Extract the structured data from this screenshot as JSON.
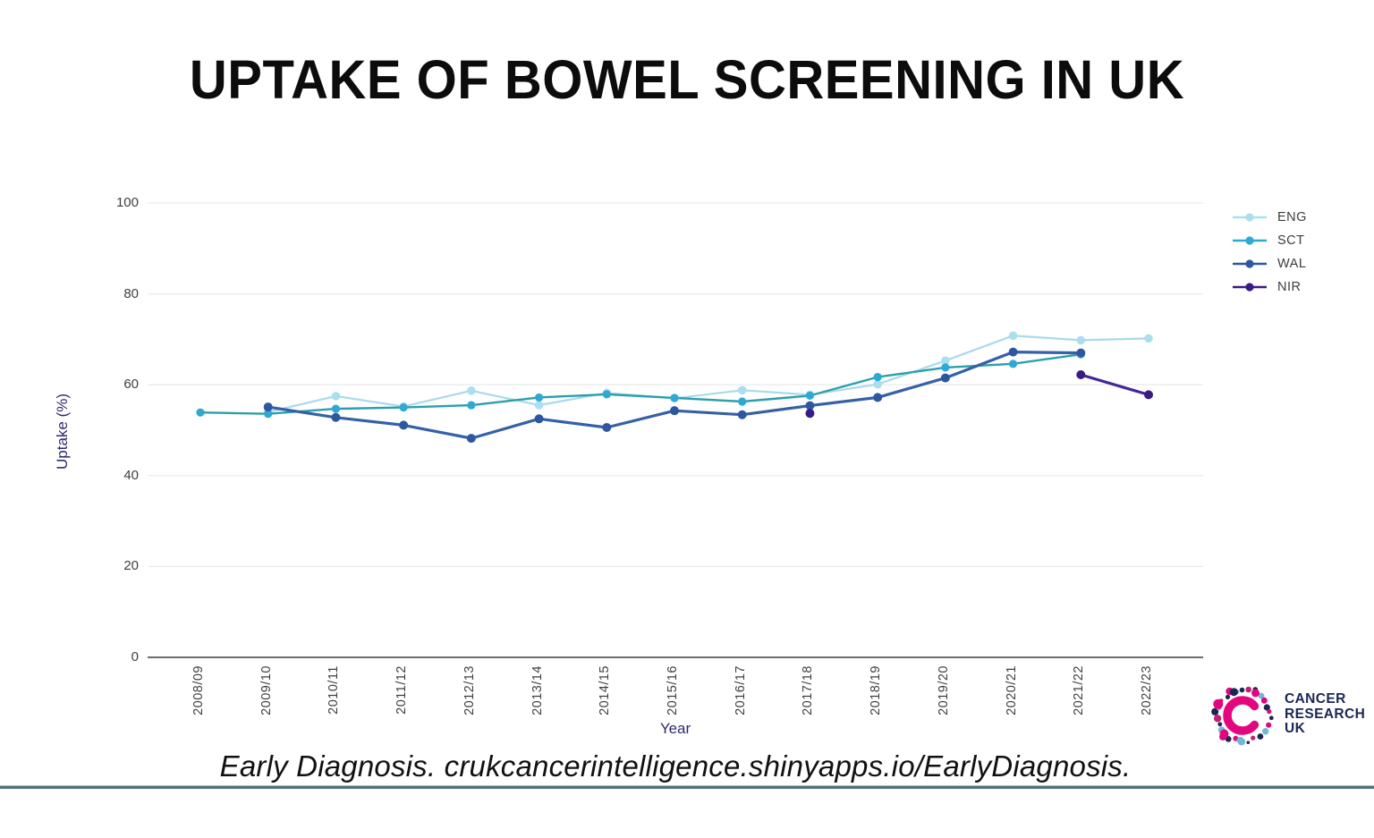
{
  "title": {
    "text": "UPTAKE OF BOWEL SCREENING IN UK"
  },
  "footer": {
    "text": "Early Diagnosis. crukcancerintelligence.shinyapps.io/EarlyDiagnosis."
  },
  "logo": {
    "line1": "CANCER",
    "line2": "RESEARCH",
    "line3": "UK",
    "pink": "#e2067f",
    "navy": "#1b2653",
    "light_blue": "#71b8d9"
  },
  "axis_colors": {
    "tick_label": "#3f3f3f",
    "axis_title": "#2e2a6e",
    "gridline": "#ececec",
    "zero_line": "#6e6e6e"
  },
  "chart_data": {
    "type": "line",
    "title": "UPTAKE OF BOWEL SCREENING IN UK",
    "xlabel": "Year",
    "ylabel": "Uptake (%)",
    "ylim": [
      0,
      100
    ],
    "yticks": [
      0,
      20,
      40,
      60,
      80,
      100
    ],
    "grid": true,
    "legend_position": "right",
    "categories": [
      "2008/09",
      "2009/10",
      "2010/11",
      "2011/12",
      "2012/13",
      "2013/14",
      "2014/15",
      "2015/16",
      "2016/17",
      "2017/18",
      "2018/19",
      "2019/20",
      "2020/21",
      "2021/22",
      "2022/23"
    ],
    "series": [
      {
        "name": "ENG",
        "line_color": "#a8daeb",
        "marker_color": "#abdff0",
        "values": [
          null,
          54.0,
          57.5,
          55.2,
          58.7,
          55.5,
          58.2,
          57.0,
          58.8,
          57.8,
          60.1,
          65.3,
          70.8,
          69.8,
          70.2
        ]
      },
      {
        "name": "SCT",
        "line_color": "#2b9fac",
        "marker_color": "#2ea9d3",
        "values": [
          53.9,
          53.6,
          54.7,
          55.0,
          55.5,
          57.2,
          57.9,
          57.1,
          56.3,
          57.6,
          61.7,
          63.8,
          64.6,
          66.7,
          null
        ]
      },
      {
        "name": "WAL",
        "line_color": "#3560a6",
        "marker_color": "#2f57a0",
        "values": [
          null,
          55.1,
          52.8,
          51.1,
          48.2,
          52.5,
          50.6,
          54.3,
          53.4,
          55.4,
          57.2,
          61.5,
          67.2,
          67.0,
          null
        ]
      },
      {
        "name": "NIR",
        "line_color": "#45259e",
        "marker_color": "#381c85",
        "values": [
          null,
          null,
          null,
          null,
          null,
          null,
          null,
          null,
          null,
          53.7,
          null,
          null,
          null,
          62.2,
          57.8
        ]
      }
    ]
  }
}
